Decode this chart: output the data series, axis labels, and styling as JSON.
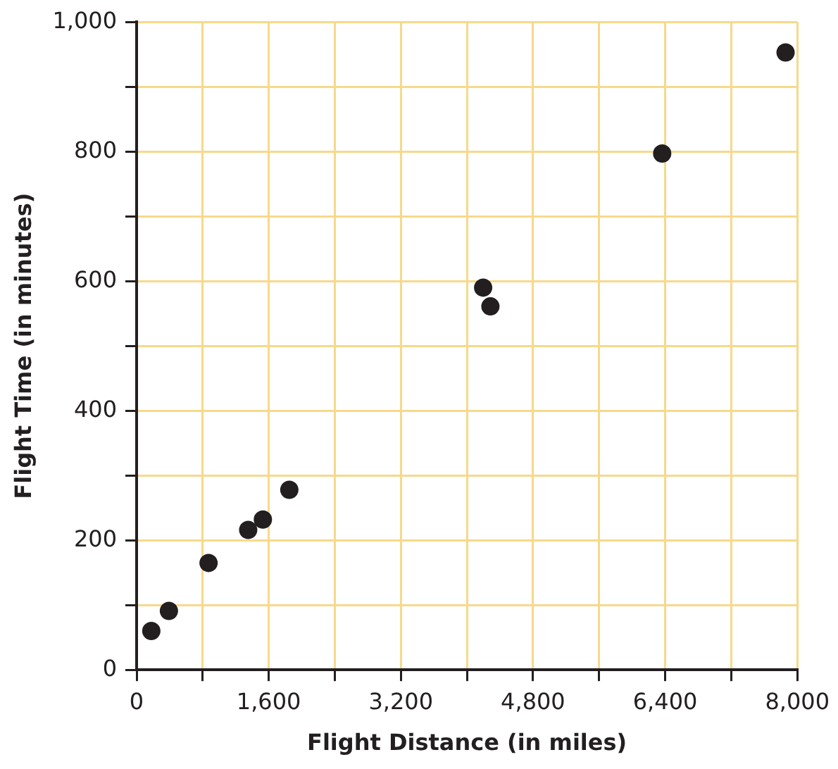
{
  "chart_data": {
    "type": "scatter",
    "xlabel": "Flight Distance (in miles)",
    "ylabel": "Flight Time (in minutes)",
    "x": [
      178,
      391,
      871,
      1351,
      1529,
      1849,
      4196,
      4284,
      6364,
      7858
    ],
    "series": [
      {
        "color": "#231f20",
        "values": [
          60,
          91,
          165,
          216,
          232,
          278,
          590,
          561,
          797,
          953
        ]
      }
    ],
    "xlim": [
      0,
      8000
    ],
    "ylim": [
      0,
      1000
    ],
    "xticks": [
      0,
      {
        "value": 800,
        "label": null
      },
      {
        "value": 1600,
        "label": "1,600"
      },
      {
        "value": 2400,
        "label": null
      },
      {
        "value": 3200,
        "label": "3,200"
      },
      {
        "value": 4000,
        "label": null
      },
      {
        "value": 4800,
        "label": "4,800"
      },
      {
        "value": 5600,
        "label": null
      },
      {
        "value": 6400,
        "label": "6,400"
      },
      {
        "value": 7200,
        "label": null
      },
      {
        "value": 8000,
        "label": "8,000"
      }
    ],
    "yticks": [
      0,
      {
        "value": 100,
        "label": null
      },
      200,
      {
        "value": 300,
        "label": null
      },
      400,
      {
        "value": 500,
        "label": null
      },
      600,
      {
        "value": 700,
        "label": null
      },
      800,
      {
        "value": 900,
        "label": null
      },
      {
        "value": 1000,
        "label": "1,000"
      }
    ],
    "grid": true,
    "marker": "circle",
    "legend": false
  }
}
